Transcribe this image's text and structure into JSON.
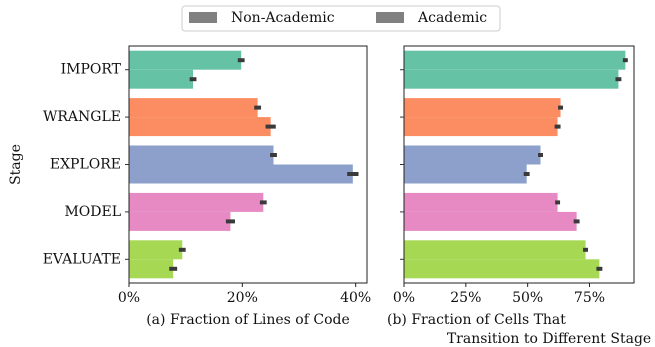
{
  "chart_data": [
    {
      "type": "bar",
      "orientation": "horizontal",
      "ylabel": "Stage",
      "xlabel": [
        "(a) Fraction of Lines of Code"
      ],
      "categories": [
        "IMPORT",
        "WRANGLE",
        "EXPLORE",
        "MODEL",
        "EVALUATE"
      ],
      "category_colors": [
        "#66c2a5",
        "#fc8d62",
        "#8da0cb",
        "#e78ac3",
        "#a6d854"
      ],
      "legend": "top",
      "series": [
        {
          "name": "Non-Academic",
          "color": "#808080",
          "values": [
            19.8,
            22.7,
            25.5,
            23.7,
            9.4
          ],
          "errors": [
            0.6,
            0.6,
            0.6,
            0.6,
            0.6
          ]
        },
        {
          "name": "Academic",
          "color": "#808080",
          "values": [
            11.3,
            25.0,
            39.5,
            17.9,
            7.8
          ],
          "errors": [
            0.6,
            0.9,
            1.0,
            0.8,
            0.7
          ]
        }
      ],
      "xlim": [
        0,
        42
      ],
      "xticks": [
        {
          "value": 0,
          "label": "0%"
        },
        {
          "value": 20,
          "label": "20%"
        },
        {
          "value": 40,
          "label": "40%"
        }
      ]
    },
    {
      "type": "bar",
      "orientation": "horizontal",
      "xlabel": [
        "(b) Fraction of Cells That",
        "Transition to Different Stage"
      ],
      "series": [
        {
          "values": [
            89.5,
            63.3,
            55.2,
            62.1,
            73.4
          ],
          "errors": [
            1.0,
            1.0,
            1.0,
            1.0,
            1.0
          ]
        },
        {
          "values": [
            86.7,
            62.1,
            49.6,
            69.8,
            79.0
          ],
          "errors": [
            1.2,
            1.2,
            1.2,
            1.2,
            1.2
          ]
        }
      ],
      "xlim": [
        0,
        93
      ],
      "xticks": [
        {
          "value": 0,
          "label": "0%"
        },
        {
          "value": 25,
          "label": "25%"
        },
        {
          "value": 50,
          "label": "50%"
        },
        {
          "value": 75,
          "label": "75%"
        }
      ]
    }
  ]
}
